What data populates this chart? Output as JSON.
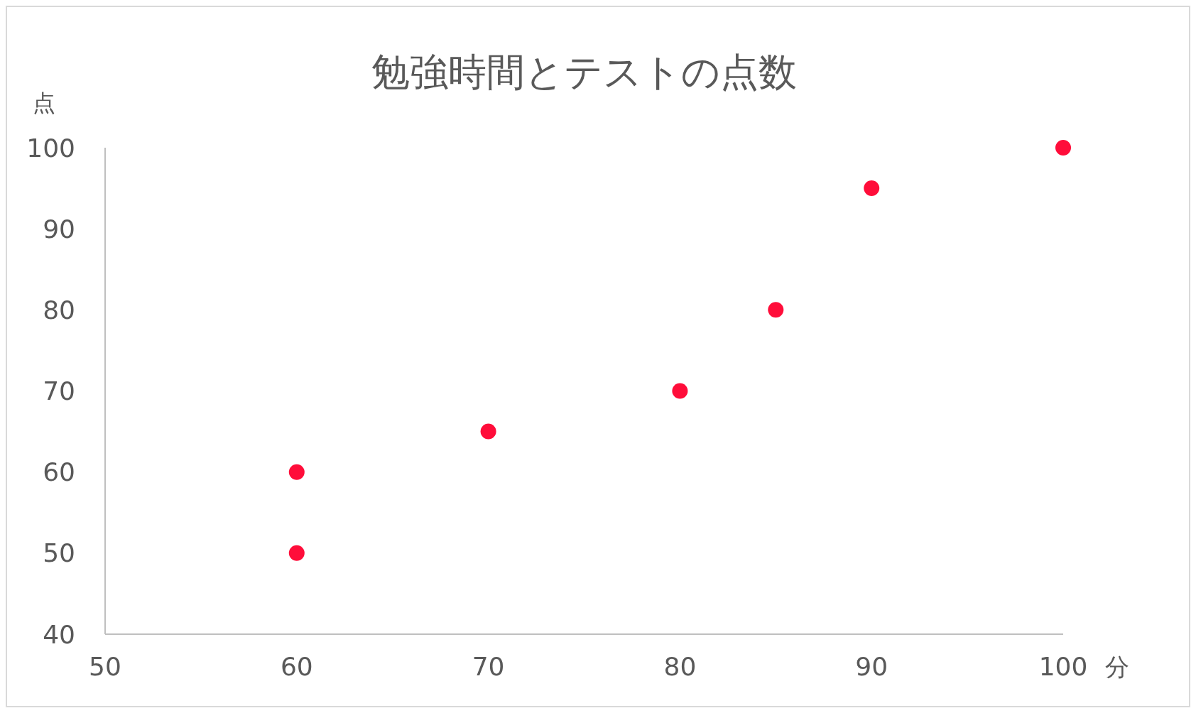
{
  "chart_data": {
    "type": "scatter",
    "title": "勉強時間とテストの点数",
    "xlabel": "分",
    "ylabel": "点",
    "x": [
      60,
      60,
      70,
      80,
      85,
      90,
      100
    ],
    "series": [
      {
        "color": "#ff0d3a",
        "values": [
          50,
          60,
          65,
          70,
          80,
          95,
          100
        ]
      }
    ],
    "xlim": [
      50,
      100
    ],
    "xticks": [
      50,
      60,
      70,
      80,
      90,
      100
    ],
    "ylim": [
      40,
      100
    ],
    "yticks": [
      40,
      50,
      60,
      70,
      80,
      90,
      100
    ],
    "grid": false,
    "marker": "circle"
  }
}
